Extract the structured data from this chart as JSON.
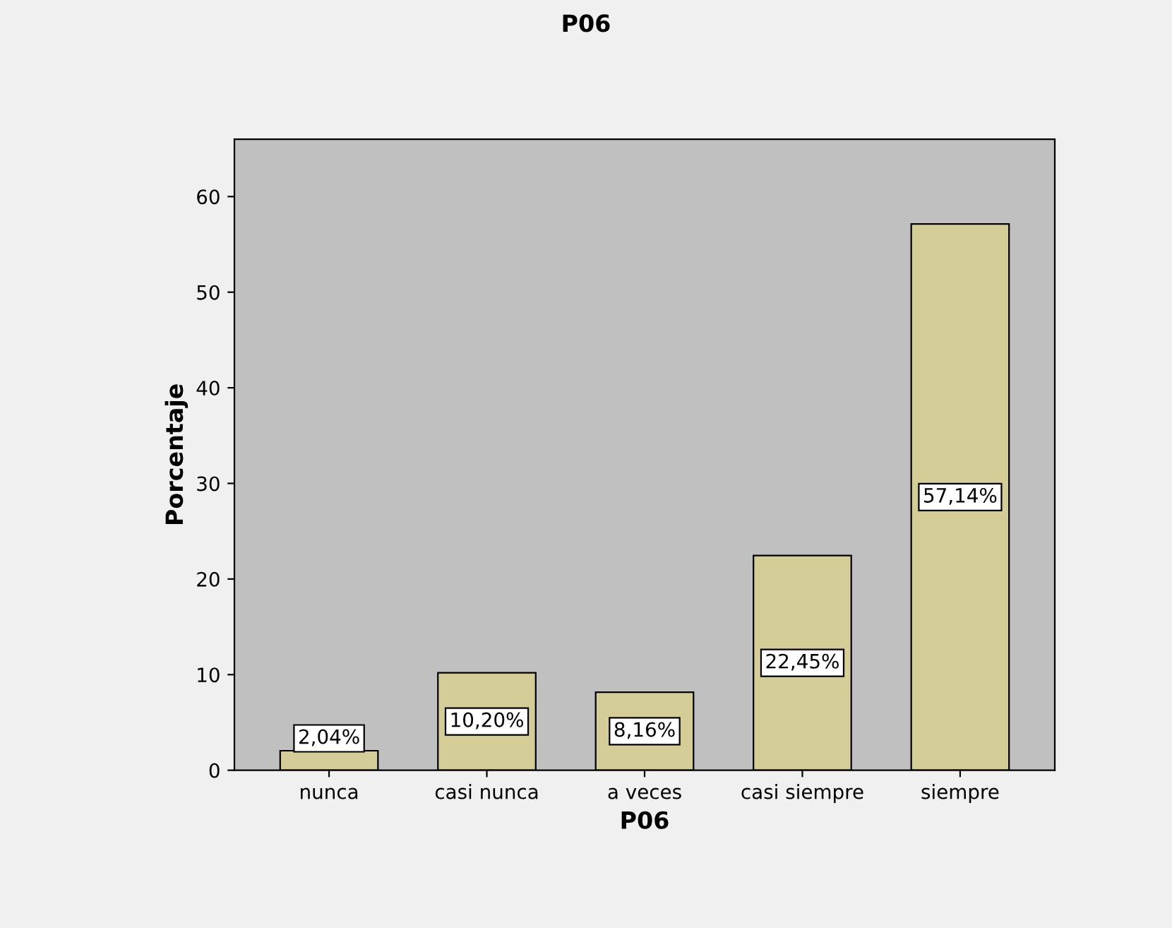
{
  "chart_data": {
    "type": "bar",
    "title": "P06",
    "xlabel": "P06",
    "ylabel": "Porcentaje",
    "categories": [
      "nunca",
      "casi nunca",
      "a veces",
      "casi siempre",
      "siempre"
    ],
    "values": [
      2.04,
      10.2,
      8.16,
      22.45,
      57.14
    ],
    "value_labels": [
      "2,04%",
      "10,20%",
      "8,16%",
      "22,45%",
      "57,14%"
    ],
    "color": "#d4cd98",
    "ylim": [
      0,
      66
    ],
    "yticks": [
      0,
      10,
      20,
      30,
      40,
      50,
      60
    ],
    "grid": false
  }
}
